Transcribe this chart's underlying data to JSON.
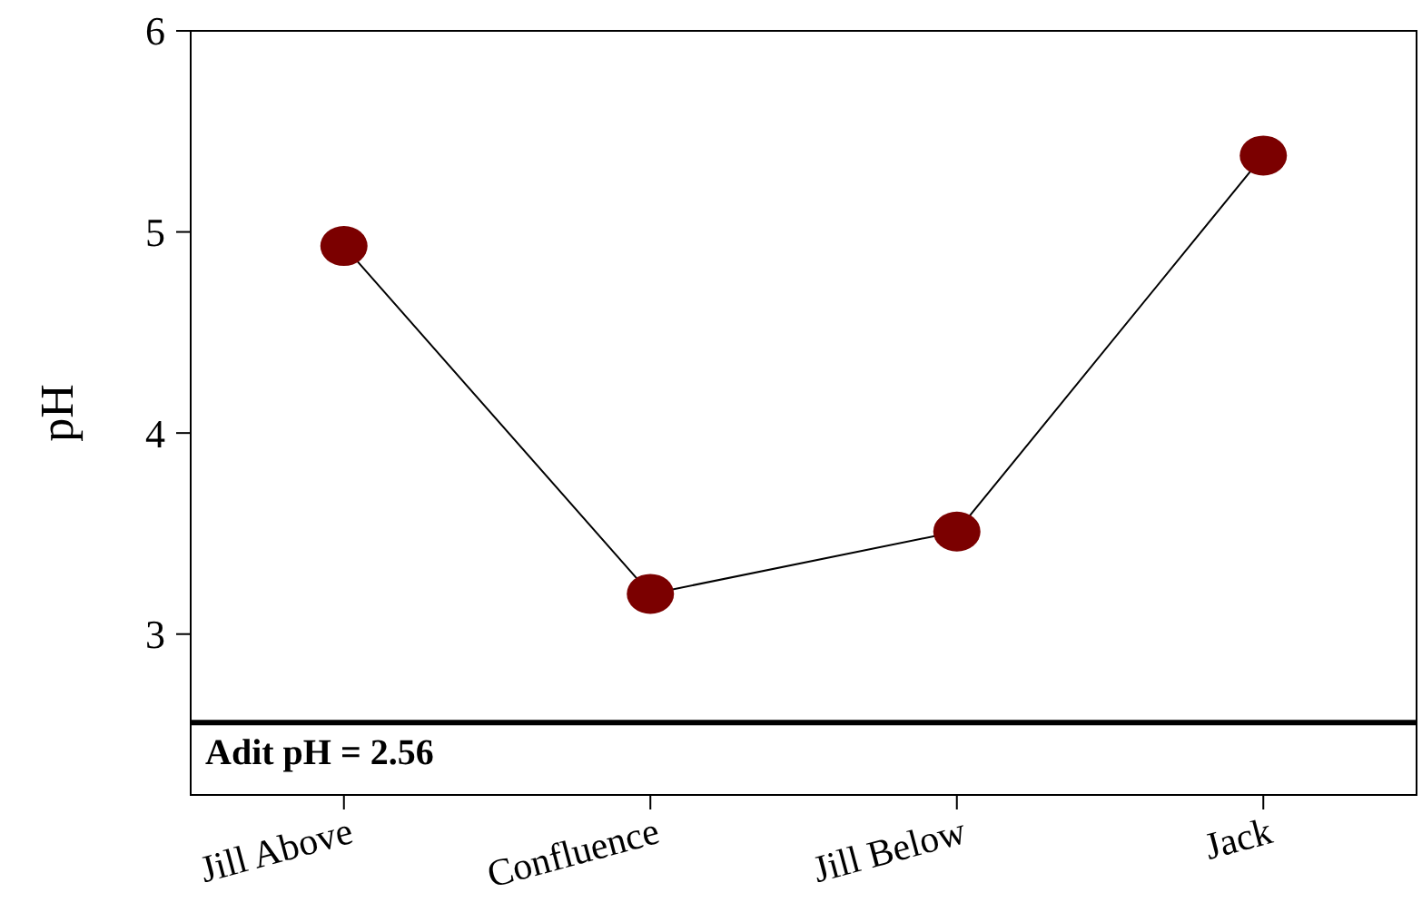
{
  "chart_data": {
    "type": "line",
    "ylabel": "pH",
    "categories": [
      "Jill Above",
      "Confluence",
      "Jill Below",
      "Jack"
    ],
    "series": [
      {
        "color": "#7b0000",
        "values": [
          4.93,
          3.2,
          3.51,
          5.38
        ]
      }
    ],
    "ylim": [
      2.2,
      6
    ],
    "yticks": [
      3,
      4,
      5,
      6
    ],
    "grid": false,
    "marker": "circle",
    "line_style": "solid",
    "ref_lines": [
      {
        "axis": "y",
        "value": 2.56,
        "label": "Adit pH = 2.56",
        "color": "#000000"
      }
    ]
  }
}
